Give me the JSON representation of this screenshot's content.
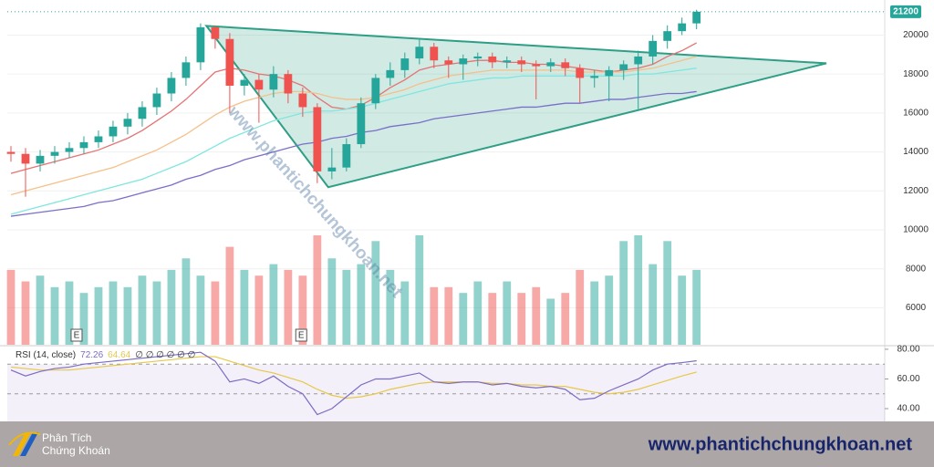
{
  "chart_data": {
    "type": "candlestick",
    "open": [
      14000,
      13900,
      13400,
      13800,
      14000,
      14200,
      14500,
      14800,
      15300,
      15700,
      16300,
      17000,
      17800,
      18600,
      20400,
      19800,
      17400,
      17700,
      17200,
      18000,
      17000,
      16300,
      13000,
      13200,
      14400,
      16500,
      17800,
      18200,
      18800,
      19400,
      18700,
      18500,
      18800,
      18900,
      18600,
      18700,
      18500,
      18400,
      18600,
      18300,
      17800,
      17900,
      18200,
      18500,
      18900,
      19700,
      20200,
      20600
    ],
    "high": [
      14300,
      14200,
      14100,
      14300,
      14500,
      14800,
      15100,
      15600,
      16000,
      16600,
      17300,
      18100,
      18900,
      20600,
      20500,
      20100,
      18000,
      18000,
      18400,
      18200,
      17300,
      16500,
      14200,
      14700,
      16800,
      18000,
      18600,
      19100,
      19800,
      19600,
      18900,
      19000,
      19100,
      19100,
      18900,
      18900,
      18700,
      18800,
      18800,
      18500,
      18200,
      18400,
      18700,
      19200,
      20000,
      20500,
      20900,
      21300
    ],
    "low": [
      13500,
      11700,
      13000,
      13400,
      13700,
      13900,
      14200,
      14500,
      14900,
      15300,
      15900,
      16600,
      17400,
      18200,
      19300,
      16000,
      16900,
      15500,
      16800,
      16500,
      15800,
      12400,
      12600,
      13000,
      14200,
      16200,
      17400,
      17800,
      18500,
      18300,
      17800,
      17700,
      18400,
      18300,
      18300,
      18100,
      16700,
      18100,
      17900,
      16500,
      17300,
      16600,
      17700,
      16200,
      18500,
      19300,
      20000,
      20300
    ],
    "close": [
      13900,
      13400,
      13800,
      14000,
      14200,
      14500,
      14800,
      15300,
      15700,
      16300,
      17000,
      17800,
      18600,
      20400,
      19800,
      17400,
      17700,
      17200,
      18000,
      17000,
      16300,
      13000,
      13200,
      14400,
      16500,
      17800,
      18200,
      18800,
      19400,
      18700,
      18500,
      18800,
      18900,
      18600,
      18700,
      18500,
      18400,
      18600,
      18300,
      17800,
      17900,
      18200,
      18500,
      18900,
      19700,
      20200,
      20600,
      21200
    ],
    "volume": [
      6.5,
      5.5,
      6,
      5,
      5.5,
      4.5,
      5,
      5.5,
      5,
      6,
      5.5,
      6.5,
      7.5,
      6,
      5.5,
      8.5,
      6.5,
      6,
      7,
      6.5,
      6,
      9.5,
      7.5,
      6.5,
      7,
      9,
      6.5,
      5.5,
      9.5,
      5,
      5,
      4.5,
      5.5,
      4.5,
      5.5,
      4.5,
      5,
      4,
      4.5,
      6.5,
      5.5,
      6,
      9,
      9.5,
      7,
      9,
      6,
      6.5
    ],
    "up_color": "#26a69a",
    "down_color": "#ef5350",
    "series": [
      {
        "color": "#e57373",
        "values": [
          12900,
          13100,
          13300,
          13500,
          13700,
          13900,
          14100,
          14400,
          14700,
          15100,
          15600,
          16100,
          16700,
          17400,
          18100,
          18300,
          18200,
          18000,
          17900,
          17700,
          17400,
          16800,
          16300,
          16200,
          16400,
          16800,
          17300,
          17700,
          18200,
          18400,
          18500,
          18600,
          18700,
          18700,
          18600,
          18600,
          18500,
          18500,
          18400,
          18300,
          18200,
          18100,
          18200,
          18300,
          18500,
          18900,
          19200,
          19600
        ]
      },
      {
        "color": "#f5c08a",
        "values": [
          11800,
          12000,
          12200,
          12400,
          12600,
          12800,
          13000,
          13200,
          13500,
          13800,
          14100,
          14500,
          14900,
          15400,
          15900,
          16300,
          16600,
          16800,
          17000,
          17100,
          17100,
          17000,
          16800,
          16700,
          16700,
          16800,
          17000,
          17200,
          17500,
          17700,
          17900,
          18000,
          18100,
          18200,
          18200,
          18200,
          18200,
          18200,
          18200,
          18100,
          18100,
          18100,
          18100,
          18200,
          18300,
          18500,
          18700,
          18900
        ]
      },
      {
        "color": "#7fe6e0",
        "values": [
          10800,
          11000,
          11200,
          11400,
          11600,
          11800,
          12000,
          12200,
          12400,
          12600,
          12900,
          13200,
          13500,
          13900,
          14300,
          14700,
          15000,
          15300,
          15600,
          15800,
          16000,
          16100,
          16100,
          16200,
          16300,
          16500,
          16700,
          16900,
          17100,
          17300,
          17500,
          17600,
          17700,
          17800,
          17800,
          17900,
          17900,
          17900,
          17900,
          17900,
          17900,
          17900,
          17900,
          18000,
          18000,
          18100,
          18200,
          18300
        ]
      },
      {
        "color": "#7a6fc9",
        "values": [
          10700,
          10800,
          10900,
          11000,
          11100,
          11200,
          11400,
          11500,
          11700,
          11900,
          12100,
          12300,
          12600,
          12800,
          13100,
          13300,
          13600,
          13800,
          14000,
          14200,
          14400,
          14500,
          14700,
          14800,
          15000,
          15100,
          15300,
          15400,
          15500,
          15700,
          15800,
          15900,
          16000,
          16100,
          16200,
          16300,
          16300,
          16400,
          16500,
          16500,
          16600,
          16700,
          16700,
          16800,
          16900,
          17000,
          17000,
          17100
        ]
      }
    ],
    "triangle": {
      "x": [
        13.4,
        21.75,
        55.9
      ],
      "y": [
        20470,
        12190,
        18550
      ],
      "color": "#2e9e86"
    },
    "xlim": [
      -0.25,
      59.9
    ],
    "ylim": [
      4100,
      21800
    ],
    "yticks": [
      6000,
      8000,
      10000,
      12000,
      14000,
      16000,
      18000,
      20000
    ],
    "grid": true,
    "events": {
      "labels": [
        "E",
        "E"
      ],
      "x": [
        4.5,
        19.9
      ]
    },
    "watermark": "www.phantichchungkhoan.net",
    "rsi": {
      "title": "RSI (14, close)",
      "extra": "∅ ∅ ∅ ∅ ∅ ∅",
      "color": "#7e6bc4",
      "ma_color": "#e6c84a",
      "values": [
        66,
        62,
        65,
        67,
        68,
        70,
        71,
        72,
        73,
        74,
        75,
        76,
        77,
        78,
        72,
        58,
        60,
        57,
        62,
        55,
        50,
        36,
        40,
        48,
        56,
        60,
        60,
        62,
        64,
        58,
        57,
        58,
        58,
        56,
        57,
        55,
        54,
        55,
        53,
        46,
        47,
        52,
        56,
        60,
        66,
        70,
        71,
        72.26
      ],
      "ma": [
        68,
        67,
        66,
        66,
        66,
        67,
        68,
        69,
        70,
        71,
        72,
        73,
        74,
        75,
        75,
        72,
        69,
        66,
        64,
        61,
        58,
        53,
        49,
        47,
        48,
        50,
        53,
        55,
        57,
        58,
        58,
        58,
        58,
        57,
        57,
        56,
        56,
        55,
        55,
        53,
        51,
        50,
        51,
        53,
        56,
        59,
        62,
        64.64
      ],
      "ylim": [
        31.4,
        81.8
      ],
      "levels": [
        70,
        50,
        30
      ],
      "yticks": [
        {
          "value": 40,
          "label": "40.00"
        },
        {
          "value": 60,
          "label": "60.00"
        },
        {
          "value": 80,
          "label": "80.00"
        }
      ]
    }
  },
  "footer": {
    "brand_line1": "Phân Tích",
    "brand_line2": "Chứng Khoán",
    "url": "www.phantichchungkhoan.net"
  }
}
